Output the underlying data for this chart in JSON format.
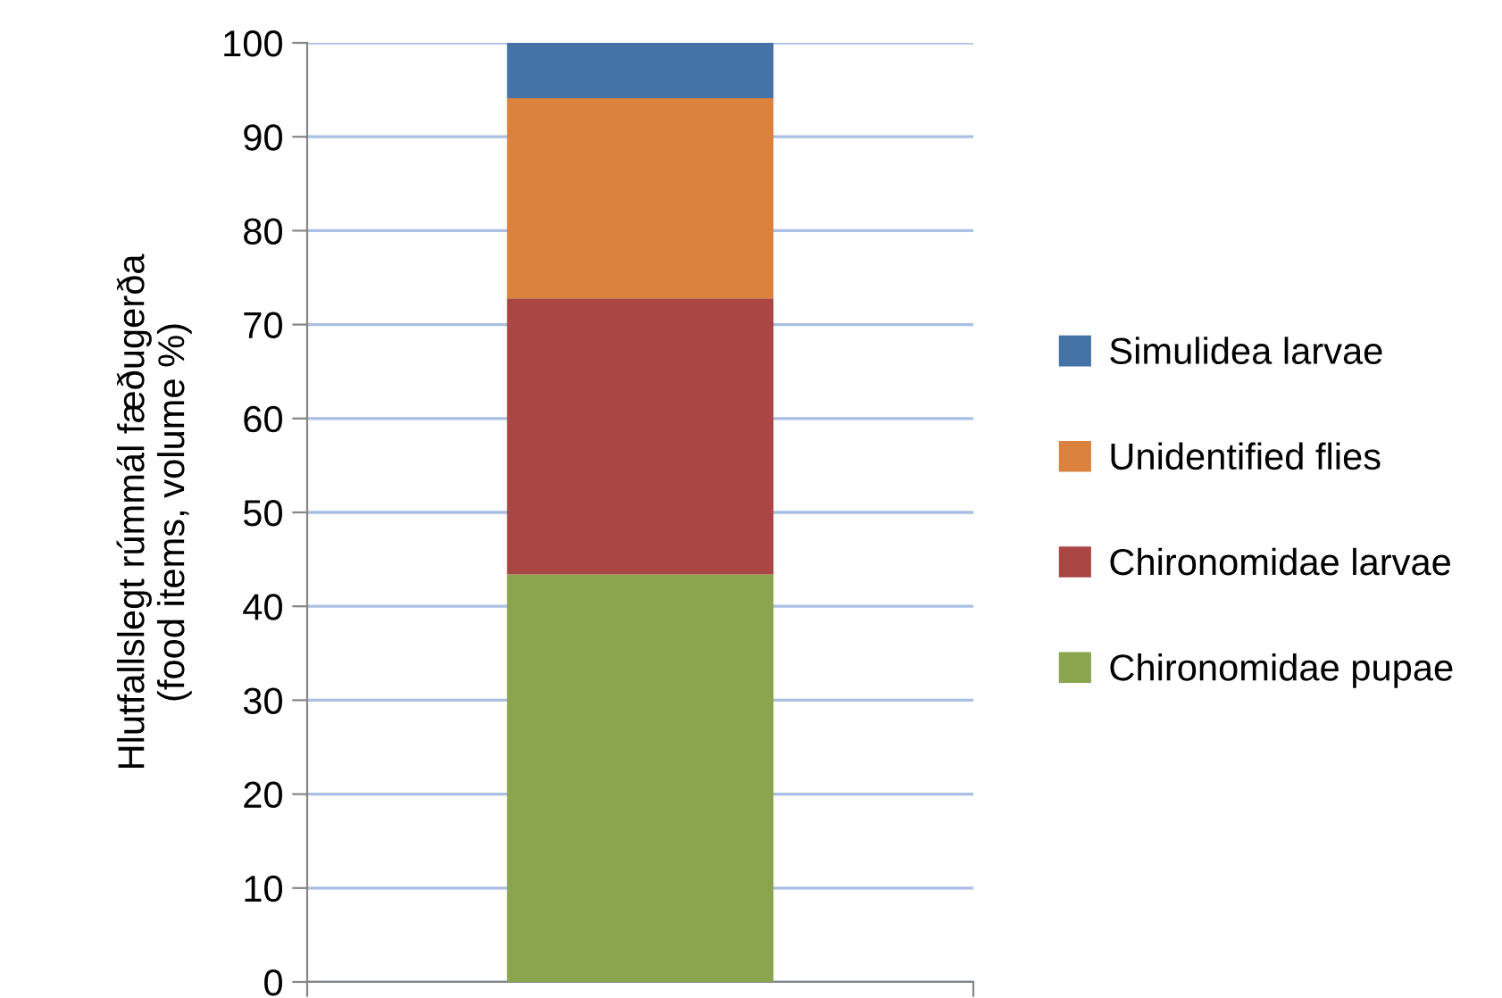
{
  "chart_data": {
    "type": "bar",
    "stacked": true,
    "categories": [
      null
    ],
    "ylabel": "Hlutfallslegt rúmmál fæðugerða (food items, volume %)",
    "series": [
      {
        "name": "Chironomidae pupae",
        "color": "#8aa54e",
        "values": [
          43.4
        ]
      },
      {
        "name": "Chironomidae larvae",
        "color": "#aa4644",
        "values": [
          29.4
        ]
      },
      {
        "name": "Unidentified flies",
        "color": "#db823e",
        "values": [
          21.3
        ]
      },
      {
        "name": "Simulidea larvae",
        "color": "#4573a7",
        "values": [
          5.9
        ]
      }
    ],
    "ylim": [
      0,
      100
    ],
    "yticks": [
      0,
      10,
      20,
      30,
      40,
      50,
      60,
      70,
      80,
      90,
      100
    ],
    "grid": "y",
    "legend": "right"
  }
}
